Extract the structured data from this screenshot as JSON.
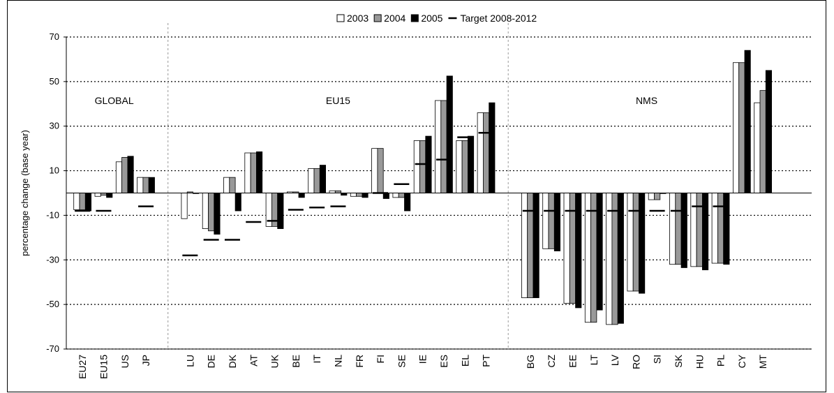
{
  "chart_data": {
    "type": "bar",
    "ylabel": "percentage change (base year)",
    "ylim": [
      -70,
      70
    ],
    "yticks": [
      -70,
      -50,
      -30,
      -10,
      10,
      30,
      50,
      70
    ],
    "grid": true,
    "legend_position": "top",
    "groups": [
      {
        "label": "GLOBAL",
        "categories": [
          "EU27",
          "EU15",
          "US",
          "JP"
        ]
      },
      {
        "label": "EU15",
        "categories": [
          "LU",
          "DE",
          "DK",
          "AT",
          "UK",
          "BE",
          "IT",
          "NL",
          "FR",
          "FI",
          "SE",
          "IE",
          "ES",
          "EL",
          "PT"
        ]
      },
      {
        "label": "NMS",
        "categories": [
          "BG",
          "CZ",
          "EE",
          "LT",
          "LV",
          "RO",
          "SI",
          "SK",
          "HU",
          "PL",
          "CY",
          "MT"
        ]
      }
    ],
    "categories": [
      "EU27",
      "EU15",
      "US",
      "JP",
      "LU",
      "DE",
      "DK",
      "AT",
      "UK",
      "BE",
      "IT",
      "NL",
      "FR",
      "FI",
      "SE",
      "IE",
      "ES",
      "EL",
      "PT",
      "BG",
      "CZ",
      "EE",
      "LT",
      "LV",
      "RO",
      "SI",
      "SK",
      "HU",
      "PL",
      "CY",
      "MT"
    ],
    "series": [
      {
        "name": "2003",
        "color": "#ffffff",
        "values": [
          -7.5,
          -1.5,
          14,
          7,
          -11.5,
          -16,
          7,
          18,
          -15,
          0.5,
          11,
          1,
          -1.5,
          20,
          -2,
          23.5,
          41.5,
          23.5,
          36,
          -47,
          -25,
          -49.5,
          -58,
          -59,
          -44,
          -3,
          -32,
          -33,
          -31.5,
          58.5,
          40.5
        ]
      },
      {
        "name": "2004",
        "color": "#999999",
        "values": [
          -7.5,
          -1,
          16,
          7,
          0.5,
          -17,
          7,
          18,
          -15,
          0.5,
          11,
          1,
          -1.5,
          20,
          -2,
          23.5,
          41.5,
          23.5,
          36,
          -47,
          -25,
          -49.5,
          -58,
          -59,
          -44,
          -3,
          -32,
          -33,
          -31.5,
          58.5,
          46
        ]
      },
      {
        "name": "2005",
        "color": "#000000",
        "values": [
          -8,
          -2,
          16.5,
          7,
          0,
          -18.5,
          -8,
          18.5,
          -16,
          -2,
          12.5,
          -1,
          -2,
          -2.5,
          -8,
          25.5,
          52.5,
          25.5,
          40.5,
          -47,
          -26,
          -51.5,
          -52.5,
          -58.5,
          -45,
          0,
          -33.5,
          -34.5,
          -32,
          64,
          55
        ]
      }
    ],
    "target": {
      "name": "Target 2008-2012",
      "values": [
        -8,
        -8,
        null,
        -6,
        -28,
        -21,
        -21,
        -13,
        -12.5,
        -7.5,
        -6.5,
        -6,
        null,
        0,
        4,
        13,
        15,
        25,
        27,
        -8,
        -8,
        -8,
        -8,
        -8,
        -8,
        -8,
        -8,
        -6,
        -6,
        null,
        null
      ]
    }
  }
}
